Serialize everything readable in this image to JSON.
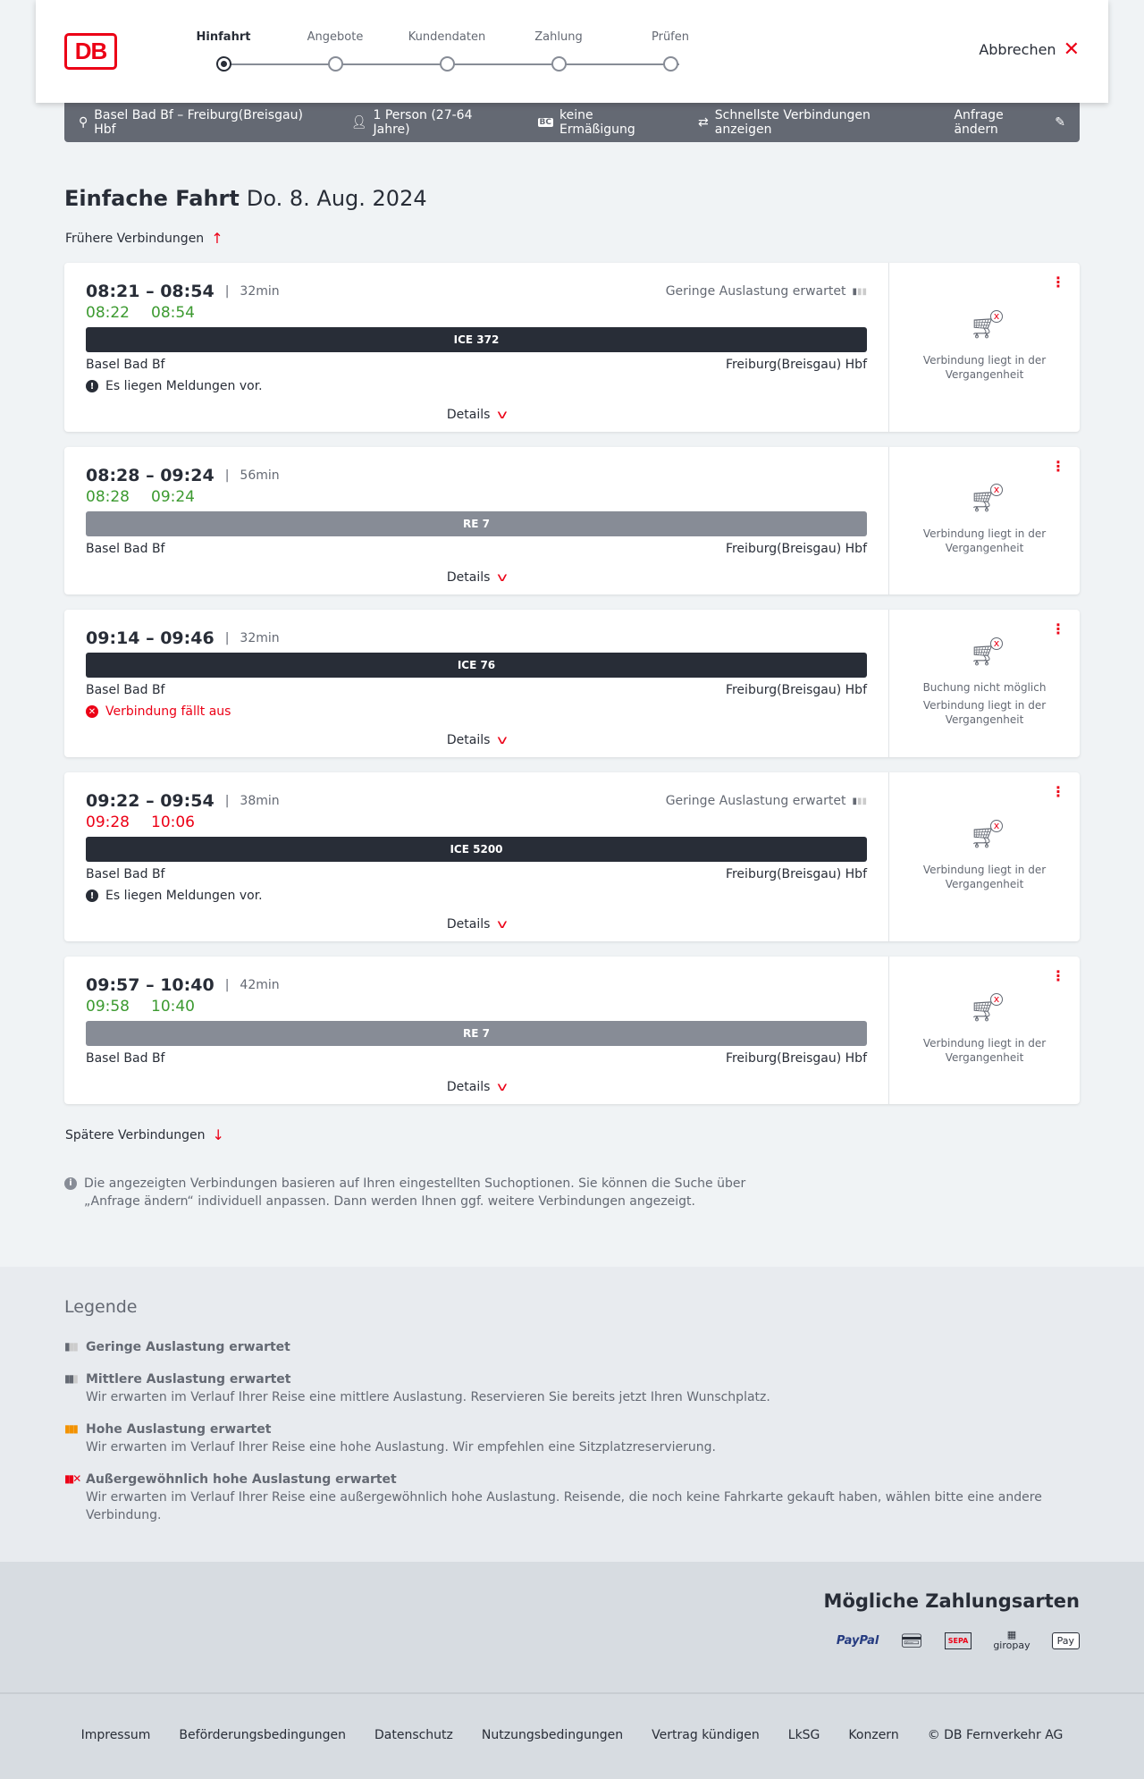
{
  "header": {
    "logo": "DB",
    "steps": [
      "Hinfahrt",
      "Angebote",
      "Kundendaten",
      "Zahlung",
      "Prüfen"
    ],
    "active_step": 0,
    "cancel": "Abbrechen"
  },
  "summary": {
    "route": "Basel Bad Bf – Freiburg(Breisgau) Hbf",
    "persons": "1 Person (27-64 Jahre)",
    "discount_badge": "BC",
    "discount": "keine Ermäßigung",
    "fastest": "Schnellste Verbindungen anzeigen",
    "edit": "Anfrage ändern"
  },
  "title": {
    "type": "Einfache Fahrt",
    "date": "Do. 8. Aug. 2024"
  },
  "earlier": "Frühere Verbindungen",
  "later": "Spätere Verbindungen",
  "connections": [
    {
      "times": "08:21 – 08:54",
      "duration": "32min",
      "load": "Geringe Auslastung erwartet",
      "rt_dep": "08:22",
      "rt_arr": "08:54",
      "rt_late": false,
      "train": "ICE 372",
      "bar": "dark",
      "from": "Basel Bad Bf",
      "to": "Freiburg(Breisgau) Hbf",
      "message": "Es liegen Meldungen vor.",
      "message_type": "info",
      "details": "Details",
      "status": [
        "Verbindung liegt in der Vergangenheit"
      ]
    },
    {
      "times": "08:28 – 09:24",
      "duration": "56min",
      "load": "",
      "rt_dep": "08:28",
      "rt_arr": "09:24",
      "rt_late": false,
      "train": "RE 7",
      "bar": "grey",
      "from": "Basel Bad Bf",
      "to": "Freiburg(Breisgau) Hbf",
      "message": "",
      "details": "Details",
      "status": [
        "Verbindung liegt in der Vergangenheit"
      ]
    },
    {
      "times": "09:14 – 09:46",
      "duration": "32min",
      "load": "",
      "rt_dep": "",
      "rt_arr": "",
      "train": "ICE 76",
      "bar": "dark",
      "from": "Basel Bad Bf",
      "to": "Freiburg(Breisgau) Hbf",
      "message": "Verbindung fällt aus",
      "message_type": "cancelled",
      "details": "Details",
      "status": [
        "Buchung nicht möglich",
        "Verbindung liegt in der Vergangenheit"
      ]
    },
    {
      "times": "09:22 – 09:54",
      "duration": "38min",
      "load": "Geringe Auslastung erwartet",
      "rt_dep": "09:28",
      "rt_arr": "10:06",
      "rt_late": true,
      "train": "ICE 5200",
      "bar": "dark",
      "from": "Basel Bad Bf",
      "to": "Freiburg(Breisgau) Hbf",
      "message": "Es liegen Meldungen vor.",
      "message_type": "info",
      "details": "Details",
      "status": [
        "Verbindung liegt in der Vergangenheit"
      ]
    },
    {
      "times": "09:57 – 10:40",
      "duration": "42min",
      "load": "",
      "rt_dep": "09:58",
      "rt_arr": "10:40",
      "rt_late": false,
      "train": "RE 7",
      "bar": "grey",
      "from": "Basel Bad Bf",
      "to": "Freiburg(Breisgau) Hbf",
      "message": "",
      "details": "Details",
      "status": [
        "Verbindung liegt in der Vergangenheit"
      ]
    }
  ],
  "info": "Die angezeigten Verbindungen basieren auf Ihren eingestellten Suchoptionen. Sie können die Suche über „Anfrage ändern“ individuell anpassen. Dann werden Ihnen ggf. weitere Verbindungen angezeigt.",
  "legend": {
    "title": "Legende",
    "items": [
      {
        "title": "Geringe Auslastung erwartet",
        "text": "",
        "color": "#646973"
      },
      {
        "title": "Mittlere Auslastung erwartet",
        "text": "Wir erwarten im Verlauf Ihrer Reise eine mittlere Auslastung. Reservieren Sie bereits jetzt Ihren Wunschplatz.",
        "color": "#646973"
      },
      {
        "title": "Hohe Auslastung erwartet",
        "text": "Wir erwarten im Verlauf Ihrer Reise eine hohe Auslastung. Wir empfehlen eine Sitzplatzreservierung.",
        "color": "#f39200"
      },
      {
        "title": "Außergewöhnlich hohe Auslastung erwartet",
        "text": "Wir erwarten im Verlauf Ihrer Reise eine außergewöhnlich hohe Auslastung. Reisende, die noch keine Fahrkarte gekauft haben, wählen bitte eine andere Verbindung.",
        "color": "#ec0016"
      }
    ]
  },
  "payment": {
    "title": "Mögliche Zahlungsarten",
    "methods": [
      "PayPal",
      "Kreditkarte",
      "SEPA",
      "giropay",
      "Pay"
    ]
  },
  "footer": [
    "Impressum",
    "Beförderungsbedingungen",
    "Datenschutz",
    "Nutzungsbedingungen",
    "Vertrag kündigen",
    "LkSG",
    "Konzern",
    "© DB Fernverkehr AG"
  ],
  "colors": {
    "brand": "#ec0016",
    "on_time": "#3c9a30",
    "dark": "#282d37"
  }
}
